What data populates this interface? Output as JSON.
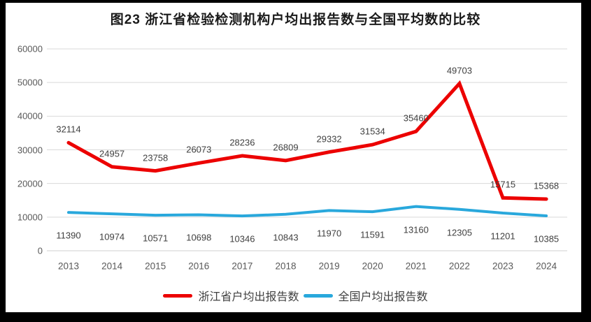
{
  "frame": {
    "border_color": "#000000",
    "background": "#FFFFFF"
  },
  "chart_data": {
    "type": "line",
    "title": "图23  浙江省检验检测机构户均出报告数与全国平均数的比较",
    "categories": [
      "2013",
      "2014",
      "2015",
      "2016",
      "2017",
      "2018",
      "2019",
      "2020",
      "2021",
      "2022",
      "2023",
      "2024"
    ],
    "series": [
      {
        "name": "浙江省户均出报告数",
        "color": "#EC0000",
        "line_width": 5,
        "label_position": "above",
        "values": [
          32114,
          24957,
          23758,
          26073,
          28236,
          26809,
          29332,
          31534,
          35460,
          49703,
          15715,
          15368
        ]
      },
      {
        "name": "全国户均出报告数",
        "color": "#29A8DC",
        "line_width": 4,
        "label_position": "below",
        "values": [
          11390,
          10974,
          10571,
          10698,
          10346,
          10843,
          11970,
          11591,
          13160,
          12305,
          11201,
          10385
        ]
      }
    ],
    "xlabel": "",
    "ylabel": "",
    "ylim": [
      0,
      60000
    ],
    "yticks": [
      0,
      10000,
      20000,
      30000,
      40000,
      50000,
      60000
    ],
    "grid": true,
    "legend_position": "bottom-center"
  },
  "styles": {
    "gridline_color": "#D9D9D9",
    "axis_line_color": "#CFCFCF",
    "tick_text_color": "#595959",
    "data_label_color": "#3F3F3F",
    "title_color": "#1A1A1A",
    "legend_text_color": "#404040"
  }
}
